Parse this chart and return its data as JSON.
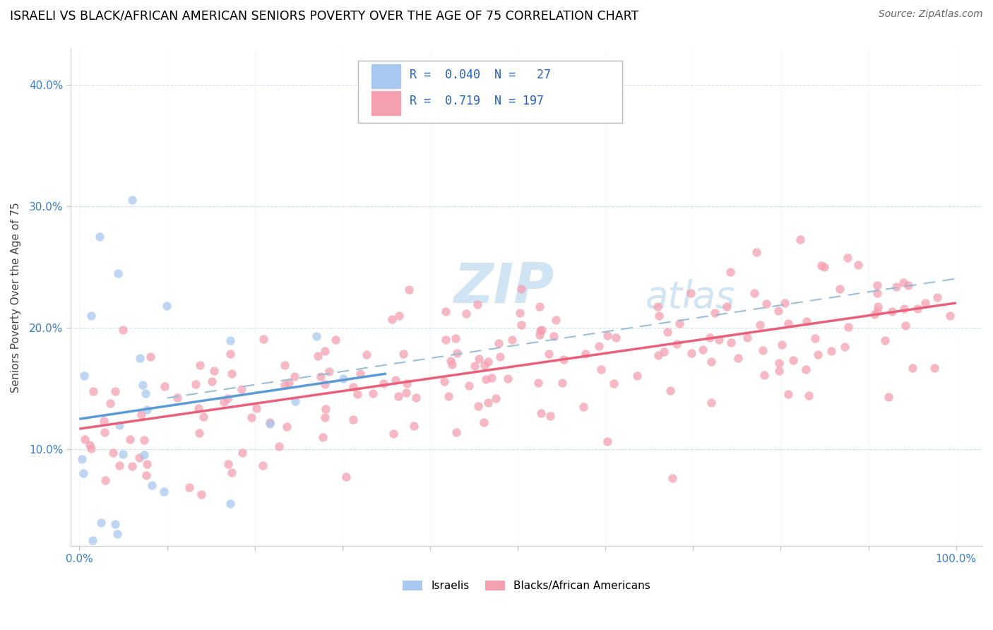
{
  "title": "ISRAELI VS BLACK/AFRICAN AMERICAN SENIORS POVERTY OVER THE AGE OF 75 CORRELATION CHART",
  "source": "Source: ZipAtlas.com",
  "ylabel": "Seniors Poverty Over the Age of 75",
  "color_israeli": "#a8c8f0",
  "color_black": "#f4a0b0",
  "color_line_israeli": "#5b9bd5",
  "color_line_black": "#e8607a",
  "color_dashed": "#90b8d8",
  "color_legend_text": "#2563c0",
  "color_axis_text": "#3a7fc1",
  "watermark_color": "#d0e4f4",
  "grid_color": "#d0dce8",
  "isr_seed": 12,
  "blk_seed": 7,
  "n_isr": 27,
  "n_blk": 197,
  "isr_x_max": 35,
  "isr_y_center": 15.0,
  "isr_y_noise": 5.0,
  "blk_intercept": 11.8,
  "blk_slope": 0.105,
  "blk_noise": 3.2,
  "xlim_left": -1,
  "xlim_right": 103,
  "ylim_bottom": 2,
  "ylim_top": 43,
  "yticks": [
    10,
    20,
    30,
    40
  ],
  "xticks": [
    0,
    10,
    20,
    30,
    40,
    50,
    60,
    70,
    80,
    90,
    100
  ],
  "marker_size": 80,
  "marker_alpha": 0.75
}
